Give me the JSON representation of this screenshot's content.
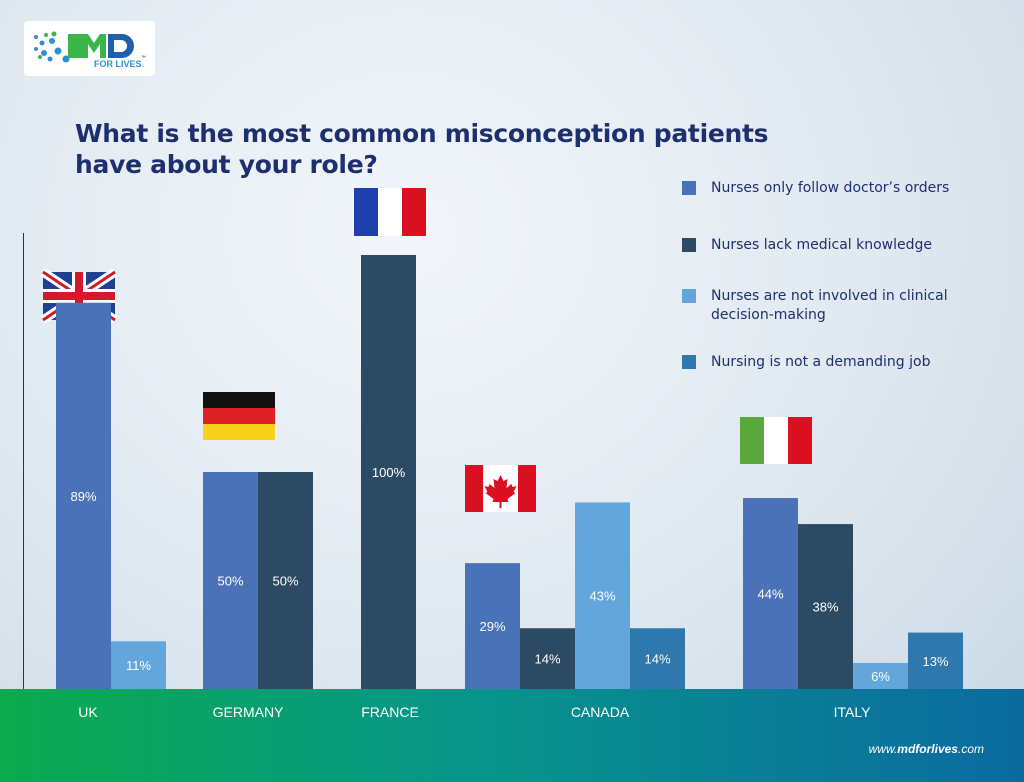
{
  "logo": {
    "text": "MD",
    "subtext": "FOR LIVES",
    "tm": "™"
  },
  "chart_data": {
    "type": "bar",
    "title": "What is the most common misconception patients have about your role?",
    "categories": [
      "UK",
      "GERMANY",
      "FRANCE",
      "CANADA",
      "ITALY"
    ],
    "series": [
      {
        "name": "Nurses only follow doctor’s orders",
        "color": "#4a72b8",
        "values": [
          89,
          50,
          null,
          29,
          44
        ]
      },
      {
        "name": "Nurses lack medical knowledge",
        "color": "#2c4a63",
        "values": [
          null,
          50,
          100,
          14,
          38
        ]
      },
      {
        "name": "Nurses are not involved in clinical decision-making",
        "color": "#62a6dc",
        "values": [
          11,
          null,
          null,
          43,
          6
        ]
      },
      {
        "name": "Nursing is not a demanding job",
        "color": "#2f78ae",
        "values": [
          null,
          null,
          null,
          14,
          13
        ]
      }
    ],
    "value_format": "percent",
    "legend": "top-right",
    "grid": false,
    "flags": [
      "uk-flag",
      "germany-flag",
      "france-flag",
      "canada-flag",
      "italy-flag"
    ]
  },
  "footer": {
    "url_prefix": "www.",
    "url_bold": "mdforlives",
    "url_suffix": ".com"
  }
}
